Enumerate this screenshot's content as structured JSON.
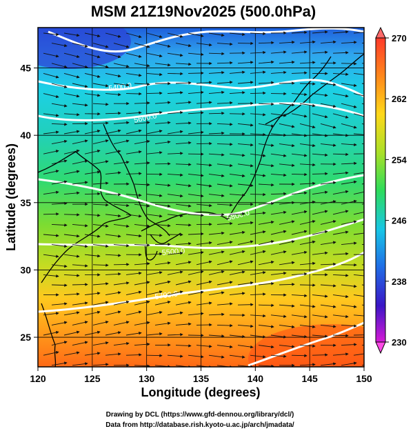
{
  "title": "MSM 21Z19Nov2025 (500.0hPa)",
  "x_axis": {
    "label": "Longitude (degrees)",
    "min": 120,
    "max": 150,
    "ticks": [
      "120",
      "125",
      "130",
      "135",
      "140",
      "145",
      "150"
    ]
  },
  "y_axis": {
    "label": "Latitude  (degrees)",
    "min": 22.8,
    "max": 48,
    "ticks": [
      "25",
      "30",
      "35",
      "40",
      "45"
    ]
  },
  "colorbar": {
    "min": 230,
    "max": 270,
    "tick_labels": [
      "270",
      "262",
      "254",
      "246",
      "238",
      "230"
    ],
    "stops": [
      "#d61ad6",
      "#3a16c6",
      "#1f6fe6",
      "#18c6e6",
      "#2edc5a",
      "#a8e028",
      "#ffd81a",
      "#ff8a1a",
      "#ff3a2a",
      "#ff6a6a"
    ]
  },
  "contour_labels": [
    "5400.0",
    "5600.0",
    "5800.0",
    "5500.0",
    "5700.0"
  ],
  "credits": {
    "line1": "Drawing by DCL (https://www.gfd-dennou.org/library/dcl/)",
    "line2": "Data from http://database.rish.kyoto-u.ac.jp/arch/jmadata/"
  },
  "colors": {
    "frame": "#000000",
    "contour": "#ffffff",
    "vector": "#111111"
  }
}
